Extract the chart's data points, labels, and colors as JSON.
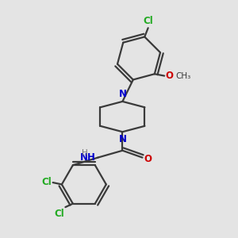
{
  "bg_color": "#e4e4e4",
  "bond_color": "#3a3a3a",
  "N_color": "#0000cc",
  "O_color": "#cc0000",
  "Cl_color": "#22aa22",
  "H_color": "#777777",
  "line_width": 1.6,
  "font_size": 8.5,
  "fig_size": [
    3.0,
    3.0
  ],
  "dpi": 100,
  "xlim": [
    0,
    10
  ],
  "ylim": [
    0,
    10
  ]
}
